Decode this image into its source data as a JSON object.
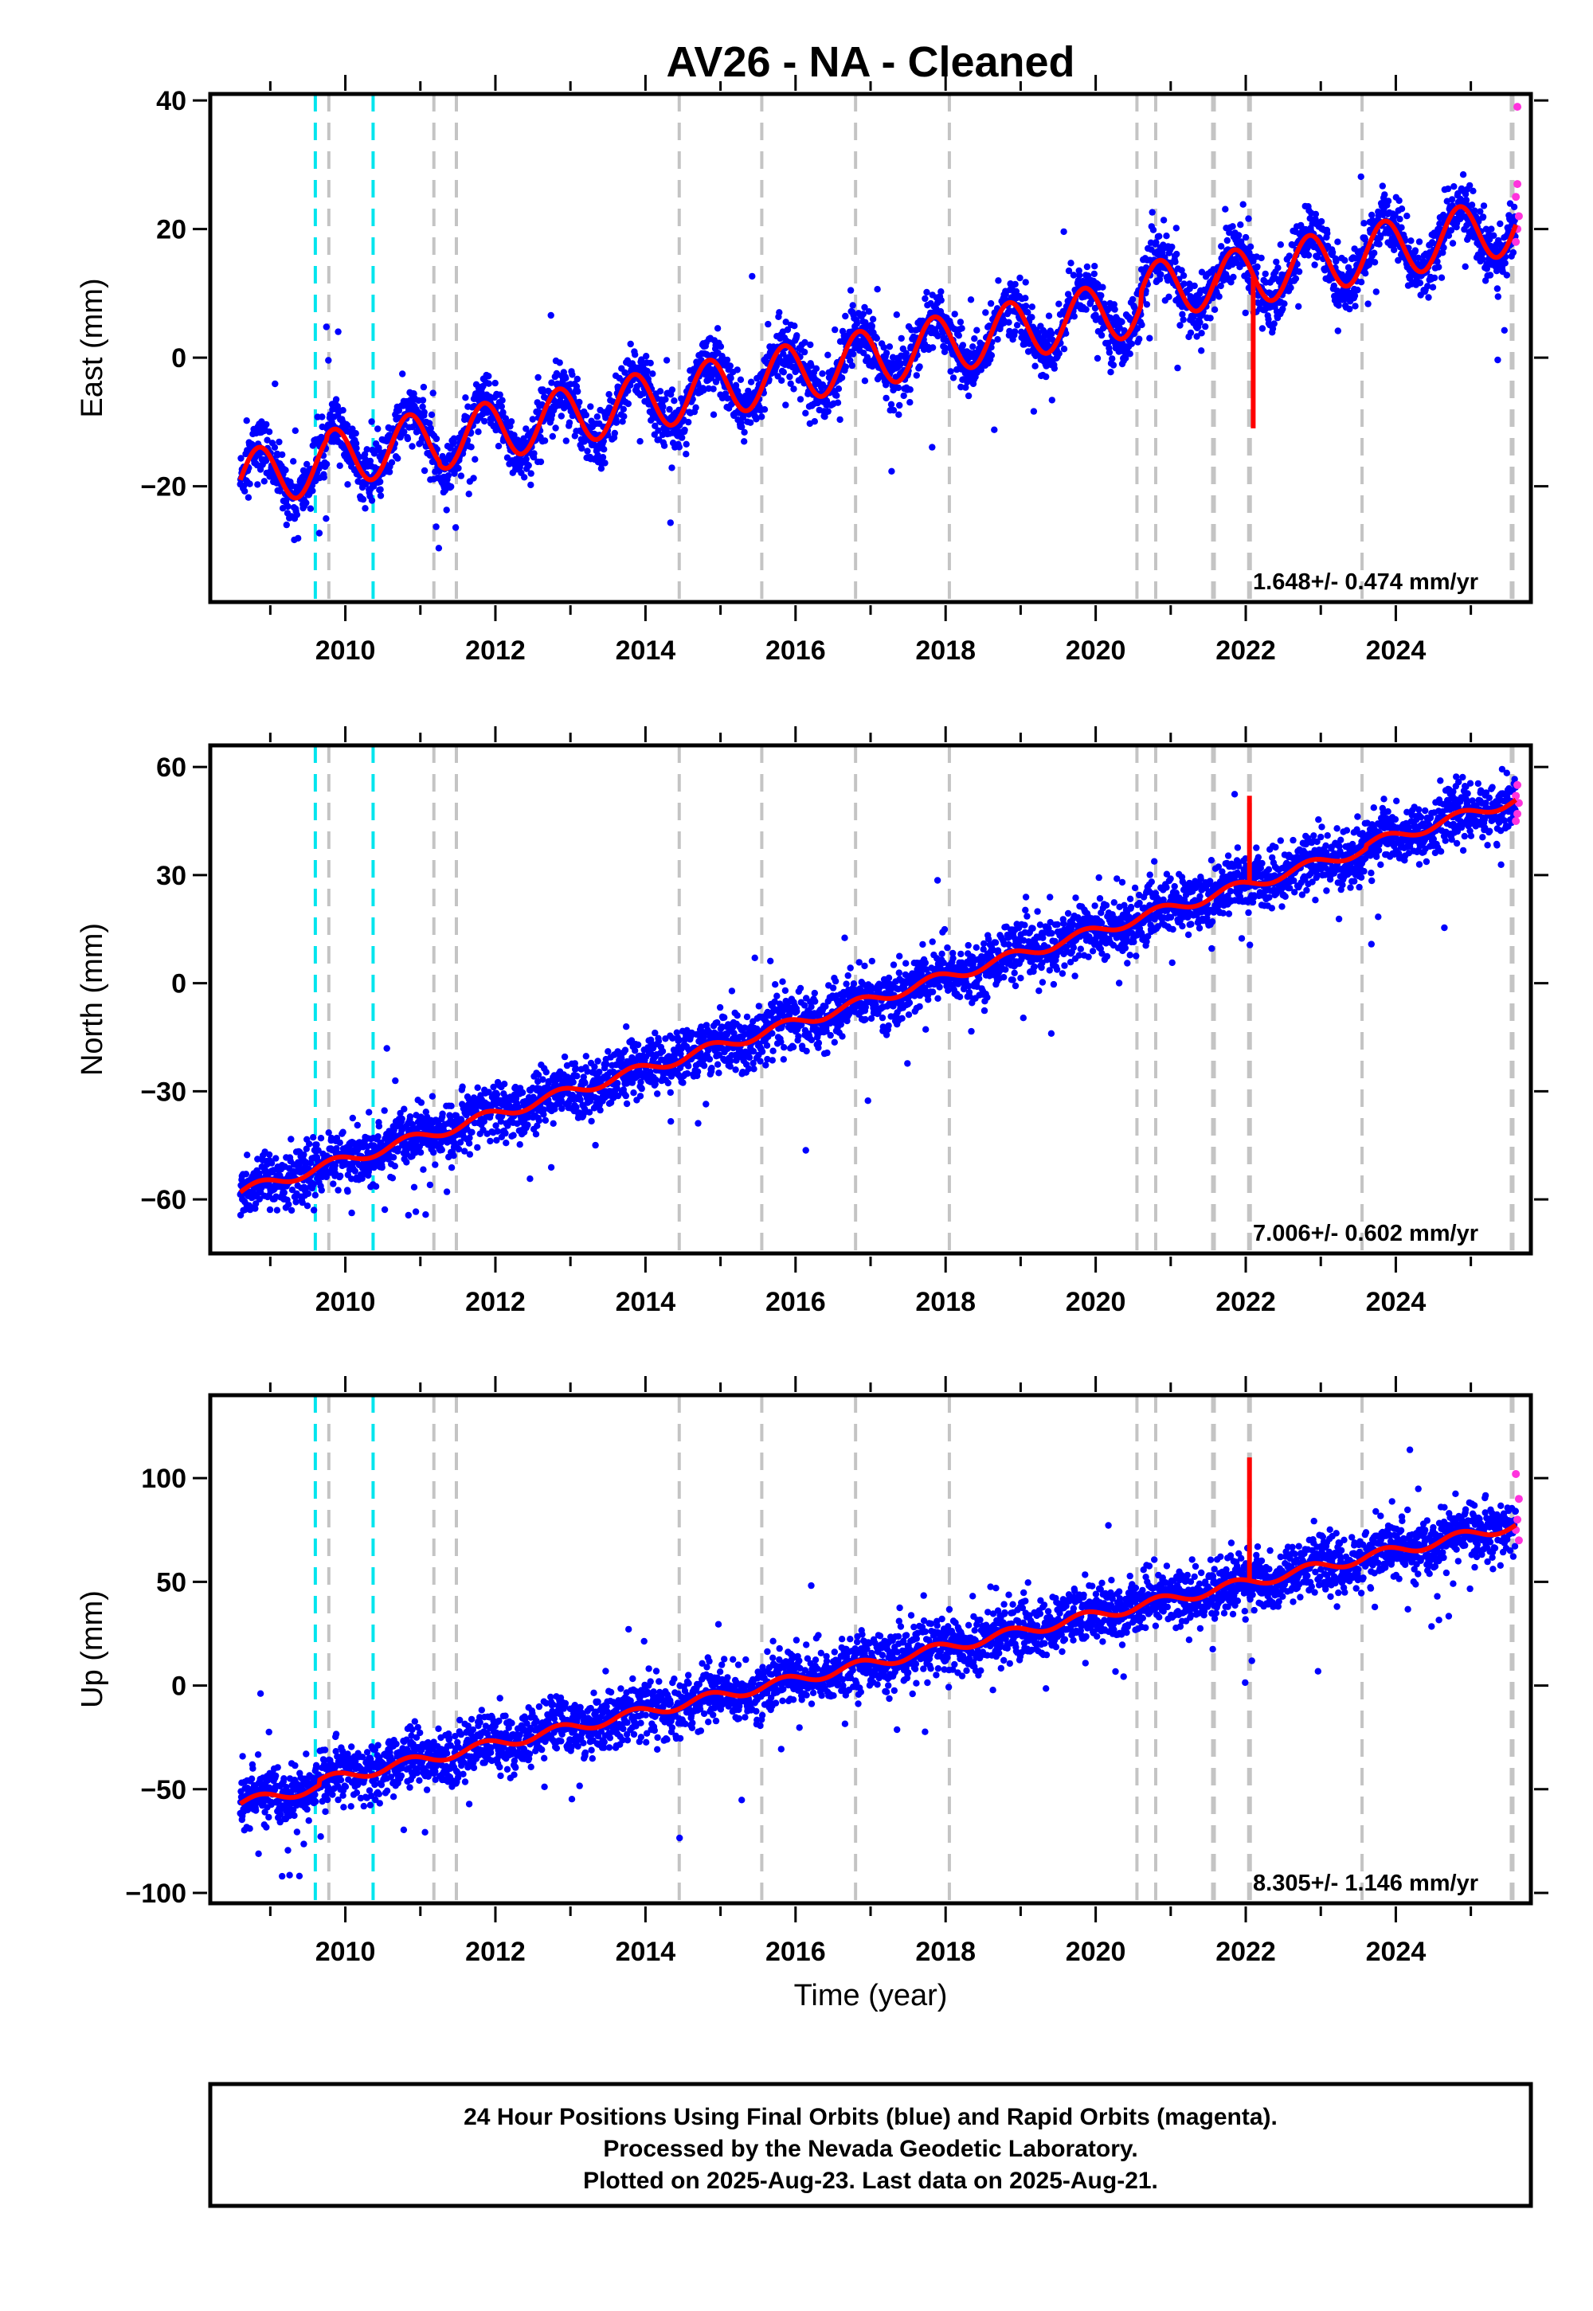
{
  "title": "AV26  - NA - Cleaned",
  "xlabel": "Time (year)",
  "footer": {
    "line1": "24 Hour Positions Using Final Orbits (blue) and Rapid Orbits (magenta).",
    "line2": "Processed by the Nevada Geodetic Laboratory.",
    "line3": "Plotted on 2025-Aug-23. Last data on 2025-Aug-21."
  },
  "colors": {
    "final_orbits": "#0000ff",
    "rapid_orbits": "#ff33dd",
    "model": "#ff0000",
    "equipment_change": "#00e5ee",
    "earthquake": "#c4c4c4"
  },
  "chart_data": [
    {
      "type": "scatter",
      "panel": "east",
      "ylabel": "East (mm)",
      "xlim": [
        2008.2,
        2025.8
      ],
      "ylim": [
        -38,
        41
      ],
      "xticks": [
        2010,
        2012,
        2014,
        2016,
        2018,
        2020,
        2022,
        2024
      ],
      "yticks": [
        -20,
        0,
        20,
        40
      ],
      "rate_label": "1.648+/- 0.474 mm/yr",
      "model": {
        "start": [
          2008.6,
          -19
        ],
        "end": [
          2025.6,
          19
        ],
        "steps": [
          {
            "x": 2009.75,
            "dy": 2
          },
          {
            "x": 2011.25,
            "dy": -1.5
          },
          {
            "x": 2020.6,
            "dy": 7
          },
          {
            "x": 2021.6,
            "dy": -2
          }
        ],
        "spike": {
          "x": 2022.1,
          "y": -11
        },
        "seasonal_amplitude": 4.5
      },
      "vlines_cyan": [
        2009.6,
        2010.37
      ],
      "vlines_gray": [
        2009.78,
        2011.18,
        2011.48,
        2014.45,
        2015.55,
        2016.8,
        2018.05,
        2020.55,
        2020.8,
        2021.57,
        2022.05,
        2023.55,
        2025.55
      ],
      "rapid_points": [
        [
          2025.62,
          39
        ],
        [
          2025.62,
          27
        ],
        [
          2025.6,
          25
        ],
        [
          2025.64,
          22
        ],
        [
          2025.62,
          20
        ],
        [
          2025.6,
          18
        ]
      ]
    },
    {
      "type": "scatter",
      "panel": "north",
      "ylabel": "North (mm)",
      "xlim": [
        2008.2,
        2025.8
      ],
      "ylim": [
        -75,
        66
      ],
      "xticks": [
        2010,
        2012,
        2014,
        2016,
        2018,
        2020,
        2022,
        2024
      ],
      "yticks": [
        -60,
        -30,
        0,
        30,
        60
      ],
      "rate_label": "7.006+/- 0.602 mm/yr",
      "model": {
        "start": [
          2008.6,
          -58
        ],
        "end": [
          2025.6,
          50
        ],
        "steps": [
          {
            "x": 2023.6,
            "dy": 3
          }
        ],
        "spike": {
          "x": 2022.05,
          "y": 52
        },
        "seasonal_amplitude": 1.5
      },
      "vlines_cyan": [
        2009.6,
        2010.37
      ],
      "vlines_gray": [
        2009.78,
        2011.18,
        2011.48,
        2014.45,
        2015.55,
        2016.8,
        2018.05,
        2020.55,
        2020.8,
        2021.57,
        2022.05,
        2023.55,
        2025.55
      ],
      "rapid_points": [
        [
          2025.62,
          55
        ],
        [
          2025.6,
          52
        ],
        [
          2025.64,
          50
        ],
        [
          2025.62,
          47
        ],
        [
          2025.6,
          45
        ]
      ]
    },
    {
      "type": "scatter",
      "panel": "up",
      "ylabel": "Up (mm)",
      "xlim": [
        2008.2,
        2025.8
      ],
      "ylim": [
        -105,
        140
      ],
      "xticks": [
        2010,
        2012,
        2014,
        2016,
        2018,
        2020,
        2022,
        2024
      ],
      "yticks": [
        -100,
        -50,
        0,
        50,
        100
      ],
      "rate_label": "8.305+/- 1.146 mm/yr",
      "model": {
        "start": [
          2008.6,
          -57
        ],
        "end": [
          2025.6,
          75
        ],
        "steps": [
          {
            "x": 2009.65,
            "dy": 8
          }
        ],
        "spike": {
          "x": 2022.05,
          "y": 110
        },
        "seasonal_amplitude": 2.5
      },
      "vlines_cyan": [
        2009.6,
        2010.37
      ],
      "vlines_gray": [
        2009.78,
        2011.18,
        2011.48,
        2014.45,
        2015.55,
        2016.8,
        2018.05,
        2020.55,
        2020.8,
        2021.57,
        2022.05,
        2023.55,
        2025.55
      ],
      "rapid_points": [
        [
          2025.6,
          102
        ],
        [
          2025.64,
          90
        ],
        [
          2025.62,
          80
        ],
        [
          2025.6,
          75
        ],
        [
          2025.64,
          70
        ]
      ]
    }
  ]
}
